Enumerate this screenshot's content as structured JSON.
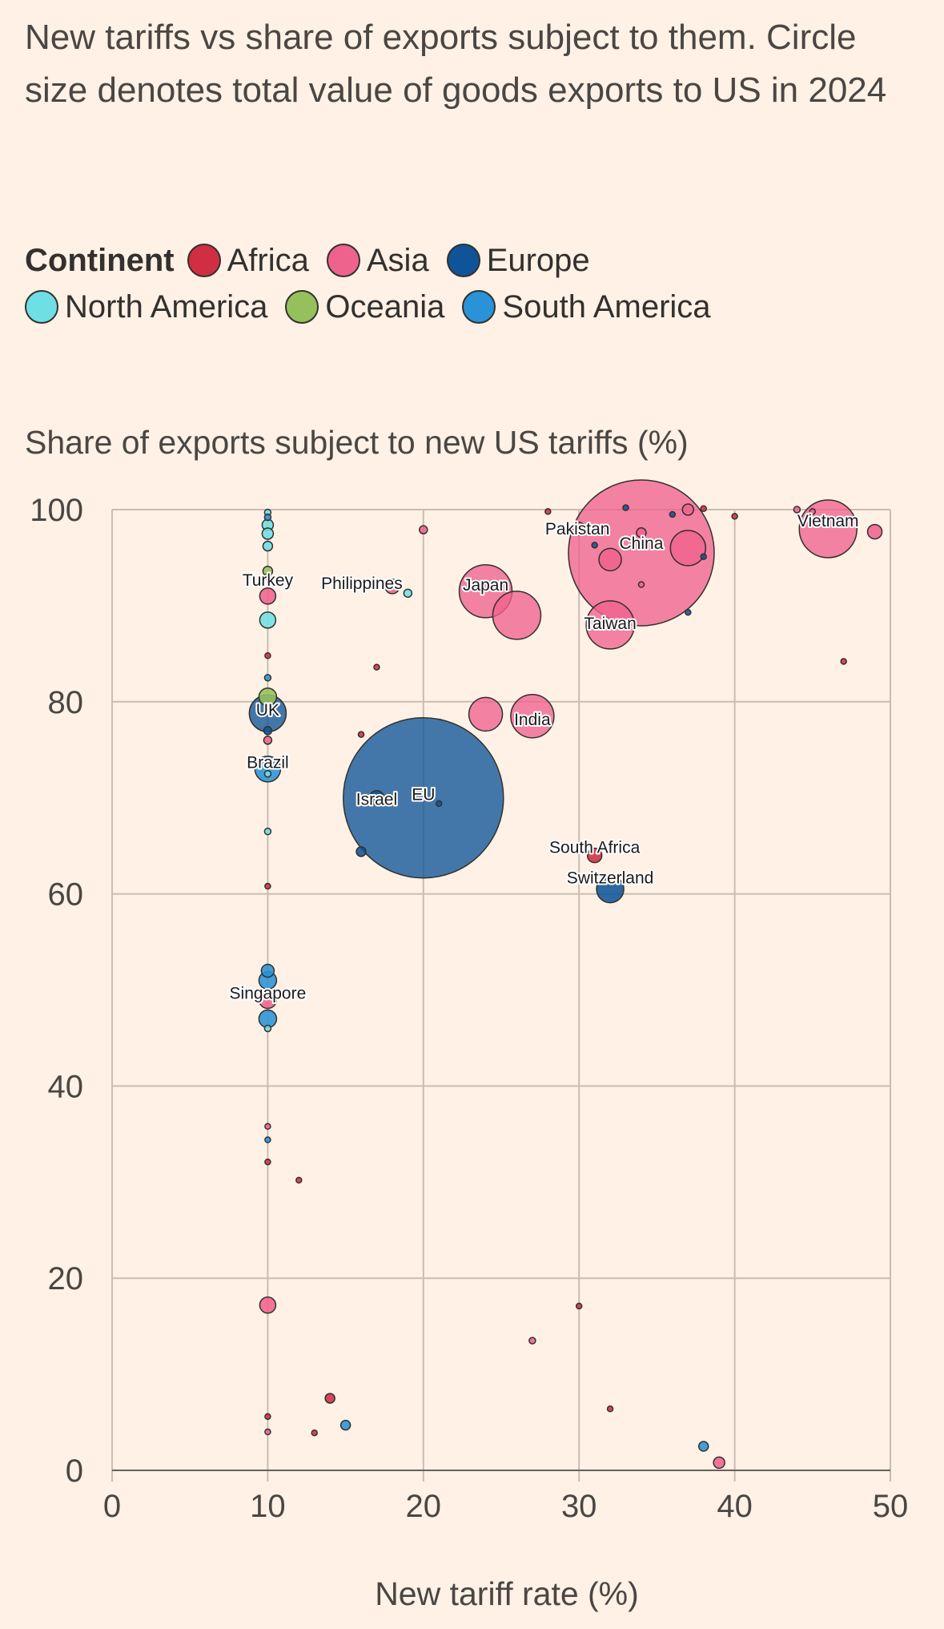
{
  "subtitle": "New tariffs vs share of exports subject to them. Circle size denotes total value of goods exports to US in 2024",
  "legend": {
    "title": "Continent",
    "items": [
      {
        "name": "Africa",
        "color": "#d12e43"
      },
      {
        "name": "Asia",
        "color": "#f0628e"
      },
      {
        "name": "Europe",
        "color": "#0f5499"
      },
      {
        "name": "North America",
        "color": "#6fdfe6"
      },
      {
        "name": "Oceania",
        "color": "#96c05b"
      },
      {
        "name": "South America",
        "color": "#2a92d6"
      }
    ]
  },
  "chart_data": {
    "type": "scatter",
    "ylabel": "Share of exports subject to new US tariffs (%)",
    "xlabel": "New tariff rate (%)",
    "xlim": [
      0,
      50
    ],
    "ylim": [
      0,
      100
    ],
    "xticks": [
      "0",
      "10",
      "20",
      "30",
      "40",
      "50"
    ],
    "yticks": [
      "0",
      "20",
      "40",
      "60",
      "80",
      "100"
    ],
    "grid": true,
    "size_encoding": "total value of goods exports to US in 2024",
    "points": [
      {
        "x": 20,
        "y": 70,
        "r": 100,
        "continent": "Europe",
        "label": "EU"
      },
      {
        "x": 34,
        "y": 95.5,
        "r": 91,
        "continent": "Asia",
        "label": "China"
      },
      {
        "x": 46,
        "y": 98,
        "r": 36,
        "continent": "Asia",
        "label": "Vietnam"
      },
      {
        "x": 26,
        "y": 89,
        "r": 30,
        "continent": "Asia",
        "label": ""
      },
      {
        "x": 24,
        "y": 91.5,
        "r": 33,
        "continent": "Asia",
        "label": "Japan"
      },
      {
        "x": 32,
        "y": 88,
        "r": 30,
        "continent": "Asia",
        "label": "Taiwan"
      },
      {
        "x": 27,
        "y": 78.5,
        "r": 27,
        "continent": "Asia",
        "label": "India"
      },
      {
        "x": 24,
        "y": 78.7,
        "r": 21,
        "continent": "Asia",
        "label": ""
      },
      {
        "x": 37,
        "y": 96,
        "r": 22,
        "continent": "Asia",
        "label": ""
      },
      {
        "x": 10,
        "y": 78.8,
        "r": 23,
        "continent": "Europe",
        "label": "UK"
      },
      {
        "x": 32,
        "y": 60.5,
        "r": 17,
        "continent": "Europe",
        "label": "Switzerland"
      },
      {
        "x": 10,
        "y": 73,
        "r": 16,
        "continent": "South America",
        "label": "Brazil"
      },
      {
        "x": 17,
        "y": 70,
        "r": 9,
        "continent": "Europe",
        "label": "Israel"
      },
      {
        "x": 32,
        "y": 94.8,
        "r": 14,
        "continent": "Asia",
        "label": ""
      },
      {
        "x": 10,
        "y": 49,
        "r": 11,
        "continent": "Asia",
        "label": "Singapore"
      },
      {
        "x": 10,
        "y": 51,
        "r": 11,
        "continent": "South America",
        "label": ""
      },
      {
        "x": 10,
        "y": 47,
        "r": 11,
        "continent": "South America",
        "label": ""
      },
      {
        "x": 10,
        "y": 52,
        "r": 8,
        "continent": "South America",
        "label": ""
      },
      {
        "x": 31,
        "y": 64,
        "r": 9,
        "continent": "Africa",
        "label": "South Africa"
      },
      {
        "x": 30,
        "y": 98,
        "r": 8,
        "continent": "Asia",
        "label": "Pakistan"
      },
      {
        "x": 18,
        "y": 92,
        "r": 9,
        "continent": "Asia",
        "label": "Philippines"
      },
      {
        "x": 10,
        "y": 91,
        "r": 10,
        "continent": "Asia",
        "label": "Turkey"
      },
      {
        "x": 10,
        "y": 88.5,
        "r": 10,
        "continent": "North America",
        "label": ""
      },
      {
        "x": 10,
        "y": 80.5,
        "r": 11,
        "continent": "Oceania",
        "label": ""
      },
      {
        "x": 10,
        "y": 17.2,
        "r": 10,
        "continent": "Asia",
        "label": ""
      },
      {
        "x": 49,
        "y": 97.7,
        "r": 9,
        "continent": "Asia",
        "label": ""
      },
      {
        "x": 37,
        "y": 100,
        "r": 7,
        "continent": "Asia",
        "label": ""
      },
      {
        "x": 34,
        "y": 97.6,
        "r": 6,
        "continent": "Asia",
        "label": ""
      },
      {
        "x": 10,
        "y": 98.4,
        "r": 7,
        "continent": "North America",
        "label": ""
      },
      {
        "x": 10,
        "y": 97.5,
        "r": 7,
        "continent": "North America",
        "label": ""
      },
      {
        "x": 10,
        "y": 96.2,
        "r": 6,
        "continent": "North America",
        "label": ""
      },
      {
        "x": 10,
        "y": 93.6,
        "r": 6,
        "continent": "Oceania",
        "label": ""
      },
      {
        "x": 19,
        "y": 91.3,
        "r": 5,
        "continent": "North America",
        "label": ""
      },
      {
        "x": 16,
        "y": 64.4,
        "r": 6,
        "continent": "Europe",
        "label": ""
      },
      {
        "x": 14,
        "y": 7.5,
        "r": 6,
        "continent": "Africa",
        "label": ""
      },
      {
        "x": 15,
        "y": 4.7,
        "r": 6,
        "continent": "South America",
        "label": ""
      },
      {
        "x": 38,
        "y": 2.5,
        "r": 6,
        "continent": "South America",
        "label": ""
      },
      {
        "x": 39,
        "y": 0.8,
        "r": 7,
        "continent": "Asia",
        "label": ""
      },
      {
        "x": 20,
        "y": 97.9,
        "r": 5,
        "continent": "Asia",
        "label": ""
      },
      {
        "x": 10,
        "y": 77,
        "r": 5,
        "continent": "Europe",
        "label": ""
      },
      {
        "x": 10,
        "y": 76,
        "r": 5,
        "continent": "Asia",
        "label": ""
      },
      {
        "x": 10,
        "y": 99.7,
        "r": 4,
        "continent": "North America",
        "label": ""
      },
      {
        "x": 10,
        "y": 99.2,
        "r": 4,
        "continent": "South America",
        "label": ""
      },
      {
        "x": 10,
        "y": 93,
        "r": 4,
        "continent": "South America",
        "label": ""
      },
      {
        "x": 10,
        "y": 82.5,
        "r": 4,
        "continent": "South America",
        "label": ""
      },
      {
        "x": 10,
        "y": 72.5,
        "r": 4,
        "continent": "North America",
        "label": ""
      },
      {
        "x": 10,
        "y": 66.5,
        "r": 4,
        "continent": "North America",
        "label": ""
      },
      {
        "x": 10,
        "y": 46,
        "r": 4,
        "continent": "North America",
        "label": ""
      },
      {
        "x": 10,
        "y": 34.4,
        "r": 3.5,
        "continent": "South America",
        "label": ""
      },
      {
        "x": 10,
        "y": 84.8,
        "r": 3.5,
        "continent": "Africa",
        "label": ""
      },
      {
        "x": 10,
        "y": 60.8,
        "r": 3.5,
        "continent": "Africa",
        "label": ""
      },
      {
        "x": 10,
        "y": 35.8,
        "r": 3.5,
        "continent": "Asia",
        "label": ""
      },
      {
        "x": 10,
        "y": 32.1,
        "r": 3.5,
        "continent": "Africa",
        "label": ""
      },
      {
        "x": 10,
        "y": 5.6,
        "r": 3.5,
        "continent": "Africa",
        "label": ""
      },
      {
        "x": 10,
        "y": 4,
        "r": 3.5,
        "continent": "Asia",
        "label": ""
      },
      {
        "x": 12,
        "y": 30.2,
        "r": 3.5,
        "continent": "Africa",
        "label": ""
      },
      {
        "x": 13,
        "y": 3.9,
        "r": 3.5,
        "continent": "Africa",
        "label": ""
      },
      {
        "x": 16,
        "y": 76.6,
        "r": 3.5,
        "continent": "Africa",
        "label": ""
      },
      {
        "x": 17,
        "y": 83.6,
        "r": 3.5,
        "continent": "Africa",
        "label": ""
      },
      {
        "x": 21,
        "y": 69.4,
        "r": 3.5,
        "continent": "Europe",
        "label": ""
      },
      {
        "x": 27,
        "y": 13.5,
        "r": 4,
        "continent": "Asia",
        "label": ""
      },
      {
        "x": 28,
        "y": 99.8,
        "r": 3.5,
        "continent": "Africa",
        "label": ""
      },
      {
        "x": 30,
        "y": 17.1,
        "r": 3.5,
        "continent": "Africa",
        "label": ""
      },
      {
        "x": 31,
        "y": 96.3,
        "r": 3.5,
        "continent": "Europe",
        "label": ""
      },
      {
        "x": 32,
        "y": 6.4,
        "r": 3.5,
        "continent": "Africa",
        "label": ""
      },
      {
        "x": 33,
        "y": 100.2,
        "r": 3.5,
        "continent": "Europe",
        "label": ""
      },
      {
        "x": 34,
        "y": 92.2,
        "r": 3.5,
        "continent": "Asia",
        "label": ""
      },
      {
        "x": 36,
        "y": 99.5,
        "r": 3.5,
        "continent": "Europe",
        "label": ""
      },
      {
        "x": 37,
        "y": 89.3,
        "r": 3.5,
        "continent": "Europe",
        "label": ""
      },
      {
        "x": 38,
        "y": 95.1,
        "r": 3.5,
        "continent": "Europe",
        "label": ""
      },
      {
        "x": 38,
        "y": 100.1,
        "r": 3.5,
        "continent": "Africa",
        "label": ""
      },
      {
        "x": 40,
        "y": 99.3,
        "r": 3.5,
        "continent": "Africa",
        "label": ""
      },
      {
        "x": 44,
        "y": 100,
        "r": 4,
        "continent": "Asia",
        "label": ""
      },
      {
        "x": 45,
        "y": 99.8,
        "r": 3.5,
        "continent": "Asia",
        "label": ""
      },
      {
        "x": 47,
        "y": 84.2,
        "r": 3.5,
        "continent": "Africa",
        "label": ""
      }
    ]
  }
}
